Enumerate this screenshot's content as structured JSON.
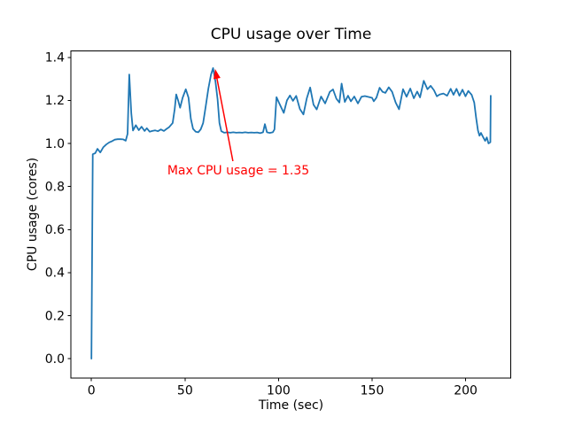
{
  "figure": {
    "background": "#ffffff"
  },
  "chart_data": {
    "type": "line",
    "title": "CPU usage over Time",
    "xlabel": "Time (sec)",
    "ylabel": "CPU usage (cores)",
    "xlim": [
      -11.0,
      224.1
    ],
    "ylim": [
      -0.09,
      1.43
    ],
    "xticks": [
      0,
      50,
      100,
      150,
      200
    ],
    "xtick_labels": [
      "0",
      "50",
      "100",
      "150",
      "200"
    ],
    "yticks": [
      0.0,
      0.2,
      0.4,
      0.6,
      0.8,
      1.0,
      1.2,
      1.4
    ],
    "ytick_labels": [
      "0.0",
      "0.2",
      "0.4",
      "0.6",
      "0.8",
      "1.0",
      "1.2",
      "1.4"
    ],
    "grid": false,
    "legend": "none",
    "line_color": "#1f77b4",
    "axis_color": "#000000",
    "series": [
      {
        "name": "cpu-usage",
        "points": [
          [
            0,
            0
          ],
          [
            0.7,
            0.95
          ],
          [
            2,
            0.955
          ],
          [
            3.2,
            0.975
          ],
          [
            4.7,
            0.958
          ],
          [
            6.3,
            0.982
          ],
          [
            7.9,
            0.995
          ],
          [
            9.5,
            1.005
          ],
          [
            11,
            1.011
          ],
          [
            12.5,
            1.018
          ],
          [
            14,
            1.02
          ],
          [
            15.5,
            1.02
          ],
          [
            17,
            1.019
          ],
          [
            18.3,
            1.013
          ],
          [
            19.3,
            1.045
          ],
          [
            20.2,
            1.32
          ],
          [
            21.3,
            1.14
          ],
          [
            22.2,
            1.06
          ],
          [
            23.7,
            1.085
          ],
          [
            25.3,
            1.062
          ],
          [
            26.8,
            1.078
          ],
          [
            28.4,
            1.058
          ],
          [
            29.6,
            1.071
          ],
          [
            31.1,
            1.055
          ],
          [
            32.5,
            1.058
          ],
          [
            34,
            1.061
          ],
          [
            35.5,
            1.057
          ],
          [
            37.1,
            1.065
          ],
          [
            38.7,
            1.058
          ],
          [
            40.2,
            1.068
          ],
          [
            41.5,
            1.076
          ],
          [
            43.4,
            1.095
          ],
          [
            44.5,
            1.16
          ],
          [
            45.3,
            1.228
          ],
          [
            46.4,
            1.198
          ],
          [
            47.4,
            1.166
          ],
          [
            48.7,
            1.212
          ],
          [
            50.4,
            1.252
          ],
          [
            51.9,
            1.213
          ],
          [
            53.1,
            1.115
          ],
          [
            54.3,
            1.068
          ],
          [
            55.7,
            1.055
          ],
          [
            57.1,
            1.052
          ],
          [
            58.4,
            1.066
          ],
          [
            59.7,
            1.095
          ],
          [
            61.1,
            1.175
          ],
          [
            62.5,
            1.255
          ],
          [
            63.9,
            1.32
          ],
          [
            65,
            1.35
          ],
          [
            66.3,
            1.288
          ],
          [
            67.4,
            1.205
          ],
          [
            68.4,
            1.095
          ],
          [
            69.4,
            1.057
          ],
          [
            71,
            1.05
          ],
          [
            72.6,
            1.052
          ],
          [
            74.2,
            1.05
          ],
          [
            75.8,
            1.052
          ],
          [
            77.4,
            1.05
          ],
          [
            79,
            1.051
          ],
          [
            80.6,
            1.05
          ],
          [
            82.2,
            1.052
          ],
          [
            83.8,
            1.05
          ],
          [
            85.4,
            1.051
          ],
          [
            87,
            1.05
          ],
          [
            88.6,
            1.051
          ],
          [
            90.2,
            1.048
          ],
          [
            91.7,
            1.052
          ],
          [
            92.7,
            1.09
          ],
          [
            93.8,
            1.052
          ],
          [
            95.3,
            1.049
          ],
          [
            96.9,
            1.052
          ],
          [
            97.8,
            1.065
          ],
          [
            98.9,
            1.215
          ],
          [
            100.2,
            1.19
          ],
          [
            101.5,
            1.166
          ],
          [
            102.8,
            1.142
          ],
          [
            104.5,
            1.2
          ],
          [
            106.1,
            1.223
          ],
          [
            107.7,
            1.198
          ],
          [
            109.4,
            1.221
          ],
          [
            111.4,
            1.16
          ],
          [
            113.3,
            1.135
          ],
          [
            115.1,
            1.21
          ],
          [
            116.9,
            1.26
          ],
          [
            118.7,
            1.18
          ],
          [
            120.4,
            1.158
          ],
          [
            122.7,
            1.218
          ],
          [
            124.9,
            1.186
          ],
          [
            127.4,
            1.24
          ],
          [
            129.1,
            1.251
          ],
          [
            130.9,
            1.208
          ],
          [
            132.5,
            1.19
          ],
          [
            133.7,
            1.278
          ],
          [
            135.4,
            1.193
          ],
          [
            137.1,
            1.222
          ],
          [
            138.7,
            1.196
          ],
          [
            140.5,
            1.218
          ],
          [
            142.4,
            1.186
          ],
          [
            144.3,
            1.217
          ],
          [
            146.1,
            1.22
          ],
          [
            148.1,
            1.216
          ],
          [
            150,
            1.212
          ],
          [
            150.9,
            1.196
          ],
          [
            152.3,
            1.213
          ],
          [
            154,
            1.259
          ],
          [
            155.6,
            1.24
          ],
          [
            157.1,
            1.235
          ],
          [
            158.9,
            1.261
          ],
          [
            160.7,
            1.24
          ],
          [
            162.6,
            1.19
          ],
          [
            164.4,
            1.159
          ],
          [
            166.5,
            1.252
          ],
          [
            168.4,
            1.217
          ],
          [
            170.4,
            1.255
          ],
          [
            172.3,
            1.21
          ],
          [
            174.1,
            1.241
          ],
          [
            175.6,
            1.214
          ],
          [
            177.6,
            1.291
          ],
          [
            179.6,
            1.252
          ],
          [
            181.3,
            1.268
          ],
          [
            183.1,
            1.247
          ],
          [
            184.6,
            1.219
          ],
          [
            186.1,
            1.227
          ],
          [
            188.1,
            1.232
          ],
          [
            190.1,
            1.222
          ],
          [
            192,
            1.254
          ],
          [
            193.5,
            1.226
          ],
          [
            195.1,
            1.254
          ],
          [
            196.7,
            1.222
          ],
          [
            198.3,
            1.25
          ],
          [
            199.9,
            1.219
          ],
          [
            201.4,
            1.244
          ],
          [
            203.2,
            1.226
          ],
          [
            204.6,
            1.19
          ],
          [
            205.6,
            1.12
          ],
          [
            206.6,
            1.06
          ],
          [
            207.4,
            1.036
          ],
          [
            208.2,
            1.049
          ],
          [
            209.4,
            1.028
          ],
          [
            210.4,
            1.012
          ],
          [
            211.3,
            1.028
          ],
          [
            212.2,
            1.0
          ],
          [
            213.2,
            1.006
          ],
          [
            213.4,
            1.222
          ]
        ]
      }
    ],
    "annotation": {
      "text": "Max CPU usage = 1.35",
      "color": "#ff0000",
      "max_value": "1.35",
      "arrow_from": [
        75.6,
        0.918
      ],
      "arrow_to": [
        66.1,
        1.346
      ]
    }
  }
}
